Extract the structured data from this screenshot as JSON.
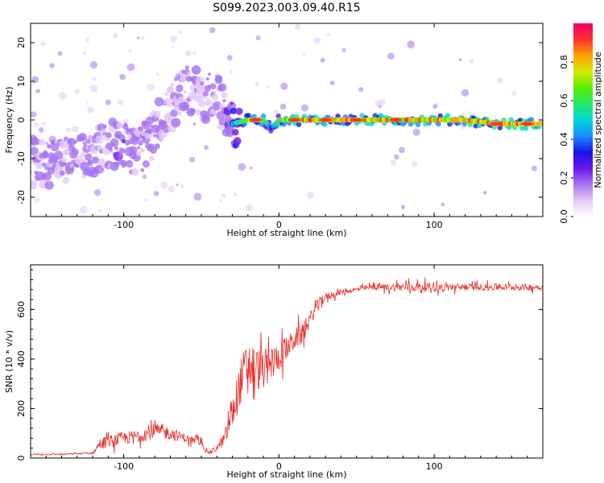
{
  "title": "S099.2023.003.09.40.R15",
  "chart_data": [
    {
      "type": "heatmap",
      "xlabel": "Height of straight line (km)",
      "ylabel": "Frequency (Hz)",
      "xlim": [
        -160,
        170
      ],
      "ylim": [
        -25,
        25
      ],
      "x_ticks": [
        -100,
        0,
        100
      ],
      "y_ticks": [
        -20,
        -10,
        0,
        10,
        20
      ],
      "colorbar": {
        "label": "Normalized spectral amplitude",
        "range": [
          0,
          1
        ],
        "ticks": [
          0.0,
          0.2,
          0.4,
          0.6,
          0.8
        ],
        "tick_labels": [
          "0.0",
          "0.2",
          "0.4",
          "0.6",
          "0.8"
        ],
        "colormap": [
          "#ffffff",
          "#e3c8f7",
          "#a874f0",
          "#6a16e8",
          "#1a12e8",
          "#1a8cff",
          "#00d8d8",
          "#27e86a",
          "#56f000",
          "#d8e800",
          "#ffa000",
          "#ff3030",
          "#f0006a"
        ]
      },
      "ridge": {
        "x": [
          -160,
          -145,
          -130,
          -120,
          -110,
          -100,
          -90,
          -85,
          -80,
          -75,
          -70,
          -65,
          -60,
          -55,
          -50,
          -45,
          -40,
          -35,
          -30,
          -20,
          -10,
          -5,
          0,
          10,
          20,
          40,
          60,
          80,
          100,
          120,
          140,
          160,
          170
        ],
        "y": [
          -11,
          -11,
          -10,
          -8,
          -6,
          -7,
          -8,
          -6,
          -3,
          1,
          3,
          6,
          8,
          8,
          6,
          6,
          6,
          2,
          -1,
          0,
          0,
          -2,
          0,
          0,
          0,
          0,
          0,
          0,
          0,
          0,
          -1,
          -1,
          -1
        ],
        "amplitude": [
          0.25,
          0.3,
          0.3,
          0.3,
          0.3,
          0.35,
          0.3,
          0.3,
          0.3,
          0.3,
          0.25,
          0.25,
          0.3,
          0.3,
          0.25,
          0.3,
          0.25,
          0.3,
          0.5,
          0.85,
          0.8,
          0.4,
          0.8,
          0.9,
          0.9,
          0.9,
          0.9,
          0.9,
          0.9,
          0.9,
          0.95,
          0.9,
          0.85
        ]
      }
    },
    {
      "type": "line",
      "xlabel": "Height of straight line (km)",
      "ylabel": "SNR (10 * v/v)",
      "xlim": [
        -160,
        170
      ],
      "ylim": [
        0,
        780
      ],
      "x_ticks": [
        -100,
        0,
        100
      ],
      "y_ticks": [
        0,
        200,
        400,
        600
      ],
      "color": "#e8302a",
      "series": [
        {
          "x": [
            -160,
            -140,
            -120,
            -115,
            -100,
            -90,
            -80,
            -70,
            -60,
            -50,
            -45,
            -40,
            -35,
            -30,
            -25,
            -20,
            -15,
            -10,
            -5,
            0,
            5,
            10,
            15,
            20,
            25,
            30,
            40,
            50,
            60,
            80,
            100,
            120,
            140,
            160,
            170
          ],
          "values": [
            15,
            15,
            20,
            60,
            80,
            90,
            110,
            100,
            80,
            60,
            20,
            40,
            80,
            180,
            300,
            380,
            360,
            360,
            380,
            410,
            440,
            480,
            500,
            560,
            620,
            650,
            670,
            680,
            690,
            690,
            690,
            690,
            690,
            690,
            690
          ],
          "noise": [
            6,
            6,
            8,
            50,
            60,
            60,
            70,
            60,
            40,
            30,
            15,
            30,
            60,
            150,
            200,
            240,
            200,
            180,
            150,
            130,
            110,
            100,
            90,
            70,
            50,
            40,
            25,
            20,
            25,
            40,
            40,
            30,
            30,
            30,
            25
          ]
        }
      ]
    }
  ]
}
